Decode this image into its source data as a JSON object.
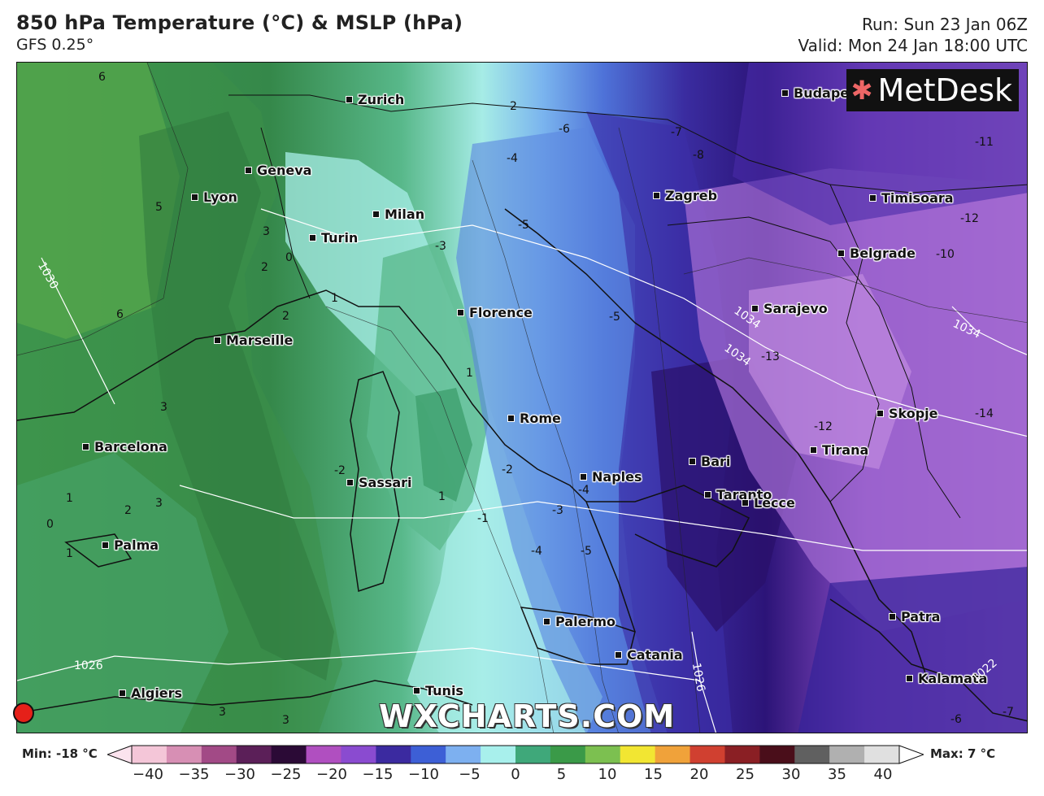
{
  "header": {
    "title": "850 hPa Temperature (°C) & MSLP (hPa)",
    "model": "GFS 0.25°",
    "run": "Run: Sun 23 Jan 06Z",
    "valid": "Valid: Mon 24 Jan 18:00 UTC"
  },
  "logo": {
    "text": "MetDesk",
    "icon": "metdesk-star-icon"
  },
  "watermark": "WXCHARTS.COM",
  "cities": [
    {
      "name": "Zurich"
    },
    {
      "name": "Geneva"
    },
    {
      "name": "Lyon"
    },
    {
      "name": "Milan"
    },
    {
      "name": "Turin"
    },
    {
      "name": "Florence"
    },
    {
      "name": "Marseille"
    },
    {
      "name": "Rome"
    },
    {
      "name": "Barcelona"
    },
    {
      "name": "Sassari"
    },
    {
      "name": "Naples"
    },
    {
      "name": "Bari"
    },
    {
      "name": "Taranto"
    },
    {
      "name": "Lecce"
    },
    {
      "name": "Palma"
    },
    {
      "name": "Palermo"
    },
    {
      "name": "Catania"
    },
    {
      "name": "Tunis"
    },
    {
      "name": "Algiers"
    },
    {
      "name": "Budapest"
    },
    {
      "name": "Zagreb"
    },
    {
      "name": "Timisoara"
    },
    {
      "name": "Belgrade"
    },
    {
      "name": "Sarajevo"
    },
    {
      "name": "Skopje"
    },
    {
      "name": "Tirana"
    },
    {
      "name": "Patra"
    },
    {
      "name": "Kalamata"
    }
  ],
  "temperature_labels": [
    "6",
    "5",
    "6",
    "2",
    "2",
    "3",
    "2",
    "1",
    "0",
    "-2",
    "-3",
    "-5",
    "-5",
    "-4",
    "-3",
    "-4",
    "-5",
    "-6",
    "-7",
    "-8",
    "-11",
    "-12",
    "-13",
    "-12",
    "-14",
    "-10",
    "1",
    "3",
    "1",
    "1",
    "2",
    "3",
    "1",
    "0",
    "-1",
    "-2",
    "-4",
    "3",
    "3",
    "-7",
    "-6"
  ],
  "pressure_labels": [
    "1030",
    "1026",
    "1026",
    "1034",
    "1034",
    "1034",
    "1022"
  ],
  "legend": {
    "min_label": "Min: -18 °C",
    "max_label": "Max: 7 °C",
    "ticks": [
      "−40",
      "−35",
      "−30",
      "−25",
      "−20",
      "−15",
      "−10",
      "−5",
      "0",
      "5",
      "10",
      "15",
      "20",
      "25",
      "30",
      "35",
      "40"
    ],
    "colors": [
      "#f4c6d8",
      "#d78fb4",
      "#a24a86",
      "#5b1f58",
      "#2b0a36",
      "#b04fc0",
      "#8a4bd0",
      "#3b2aa0",
      "#3d5fd6",
      "#7db0f0",
      "#a8f0ec",
      "#3fa87a",
      "#3a9a48",
      "#7cc050",
      "#f2e632",
      "#f0a23a",
      "#d04030",
      "#8a1f24",
      "#4a0e1a",
      "#606060",
      "#b0b0b0",
      "#e0e0e0"
    ]
  },
  "marker": {
    "color": "#e52019"
  }
}
